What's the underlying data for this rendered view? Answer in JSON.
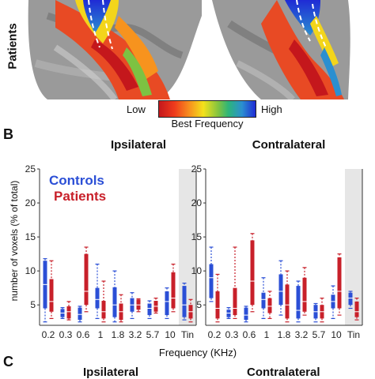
{
  "figure": {
    "row_label": "Patients",
    "colorbar": {
      "low": "Low",
      "high": "High",
      "title": "Best Frequency"
    },
    "panel_b_letter": "B",
    "panel_c_letter": "C",
    "bottom_cut_left": "Ipsilateral",
    "bottom_cut_right": "Contralateral"
  },
  "chart_data": [
    {
      "type": "box",
      "title": "Ipsilateral",
      "xlabel": "Frequency (KHz)",
      "ylabel": "number of voxels (% of total)",
      "ylim": [
        2,
        25
      ],
      "yticks": [
        5,
        10,
        15,
        20,
        25
      ],
      "categories": [
        "0.2",
        "0.3",
        "0.6",
        "1",
        "1.8",
        "3.2",
        "5.7",
        "10",
        "Tin"
      ],
      "legend": [
        "Controls",
        "Patients"
      ],
      "colors": {
        "Controls": "#2b4fd6",
        "Patients": "#c8202a"
      },
      "shaded_category": "Tin",
      "series": [
        {
          "name": "Controls",
          "boxes": [
            {
              "q1": 4.5,
              "median": 8,
              "q3": 11.5,
              "wmin": 2.5,
              "wmax": 11.8
            },
            {
              "q1": 3.2,
              "median": 3.8,
              "q3": 4.4,
              "wmin": 3.0,
              "wmax": 4.6
            },
            {
              "q1": 2.8,
              "median": 3.6,
              "q3": 4.6,
              "wmin": 2.5,
              "wmax": 4.8
            },
            {
              "q1": 4.5,
              "median": 5.8,
              "q3": 7.5,
              "wmin": 3.0,
              "wmax": 11.0
            },
            {
              "q1": 3.2,
              "median": 5.0,
              "q3": 7.6,
              "wmin": 2.5,
              "wmax": 10.0
            },
            {
              "q1": 4.0,
              "median": 5.0,
              "q3": 6.0,
              "wmin": 3.0,
              "wmax": 6.8
            },
            {
              "q1": 3.5,
              "median": 4.5,
              "q3": 5.2,
              "wmin": 3.0,
              "wmax": 5.6
            },
            {
              "q1": 3.5,
              "median": 5.5,
              "q3": 7.0,
              "wmin": 3.0,
              "wmax": 7.5
            },
            {
              "q1": 3.2,
              "median": 5.0,
              "q3": 7.8,
              "wmin": 2.8,
              "wmax": 8.2
            }
          ]
        },
        {
          "name": "Patients",
          "boxes": [
            {
              "q1": 4.0,
              "median": 5.5,
              "q3": 8.8,
              "wmin": 3.0,
              "wmax": 11.5
            },
            {
              "q1": 3.0,
              "median": 4.0,
              "q3": 4.8,
              "wmin": 2.8,
              "wmax": 5.5
            },
            {
              "q1": 5.0,
              "median": 7.0,
              "q3": 12.5,
              "wmin": 4.0,
              "wmax": 13.5
            },
            {
              "q1": 3.0,
              "median": 4.0,
              "q3": 5.6,
              "wmin": 2.5,
              "wmax": 8.5
            },
            {
              "q1": 2.8,
              "median": 4.0,
              "q3": 5.2,
              "wmin": 2.5,
              "wmax": 6.5
            },
            {
              "q1": 4.3,
              "median": 5.0,
              "q3": 5.8,
              "wmin": 4.0,
              "wmax": 5.9
            },
            {
              "q1": 4.0,
              "median": 4.8,
              "q3": 5.6,
              "wmin": 3.8,
              "wmax": 6.0
            },
            {
              "q1": 4.5,
              "median": 6.0,
              "q3": 9.8,
              "wmin": 4.0,
              "wmax": 11.0
            },
            {
              "q1": 3.0,
              "median": 4.0,
              "q3": 5.0,
              "wmin": 2.5,
              "wmax": 5.8
            }
          ]
        }
      ]
    },
    {
      "type": "box",
      "title": "Contralateral",
      "xlabel": "Frequency (KHz)",
      "ylabel": "number of voxels (% of total)",
      "ylim": [
        2,
        25
      ],
      "yticks": [
        5,
        10,
        15,
        20,
        25
      ],
      "categories": [
        "0.2",
        "0.3",
        "0.6",
        "1",
        "1.8",
        "3.2",
        "5.7",
        "10",
        "Tin"
      ],
      "legend": [
        "Controls",
        "Patients"
      ],
      "colors": {
        "Controls": "#2b4fd6",
        "Patients": "#c8202a"
      },
      "shaded_category": "Tin",
      "series": [
        {
          "name": "Controls",
          "boxes": [
            {
              "q1": 6.0,
              "median": 9.0,
              "q3": 11.0,
              "wmin": 5.5,
              "wmax": 13.5
            },
            {
              "q1": 3.2,
              "median": 3.8,
              "q3": 4.3,
              "wmin": 3.0,
              "wmax": 4.6
            },
            {
              "q1": 2.8,
              "median": 3.5,
              "q3": 4.6,
              "wmin": 2.5,
              "wmax": 4.8
            },
            {
              "q1": 4.5,
              "median": 5.8,
              "q3": 6.8,
              "wmin": 3.0,
              "wmax": 9.0
            },
            {
              "q1": 5.0,
              "median": 7.0,
              "q3": 9.5,
              "wmin": 3.5,
              "wmax": 11.5
            },
            {
              "q1": 3.0,
              "median": 4.2,
              "q3": 7.8,
              "wmin": 2.5,
              "wmax": 8.5
            },
            {
              "q1": 3.0,
              "median": 4.0,
              "q3": 5.0,
              "wmin": 2.5,
              "wmax": 5.2
            },
            {
              "q1": 4.5,
              "median": 5.5,
              "q3": 6.5,
              "wmin": 3.0,
              "wmax": 7.8
            },
            {
              "q1": 5.0,
              "median": 6.0,
              "q3": 6.8,
              "wmin": 4.5,
              "wmax": 7.0
            }
          ]
        },
        {
          "name": "Patients",
          "boxes": [
            {
              "q1": 3.0,
              "median": 4.5,
              "q3": 7.0,
              "wmin": 2.5,
              "wmax": 9.5
            },
            {
              "q1": 3.5,
              "median": 4.5,
              "q3": 7.5,
              "wmin": 3.0,
              "wmax": 13.5
            },
            {
              "q1": 5.0,
              "median": 8.5,
              "q3": 14.5,
              "wmin": 4.0,
              "wmax": 15.5
            },
            {
              "q1": 3.8,
              "median": 4.8,
              "q3": 6.0,
              "wmin": 3.0,
              "wmax": 7.0
            },
            {
              "q1": 3.0,
              "median": 5.0,
              "q3": 8.0,
              "wmin": 2.5,
              "wmax": 10.0
            },
            {
              "q1": 4.0,
              "median": 5.5,
              "q3": 9.0,
              "wmin": 3.5,
              "wmax": 10.5
            },
            {
              "q1": 3.0,
              "median": 4.0,
              "q3": 5.0,
              "wmin": 2.5,
              "wmax": 6.0
            },
            {
              "q1": 4.5,
              "median": 7.0,
              "q3": 12.0,
              "wmin": 3.5,
              "wmax": 12.5
            },
            {
              "q1": 3.2,
              "median": 4.0,
              "q3": 5.5,
              "wmin": 2.8,
              "wmax": 6.0
            }
          ]
        }
      ]
    }
  ]
}
